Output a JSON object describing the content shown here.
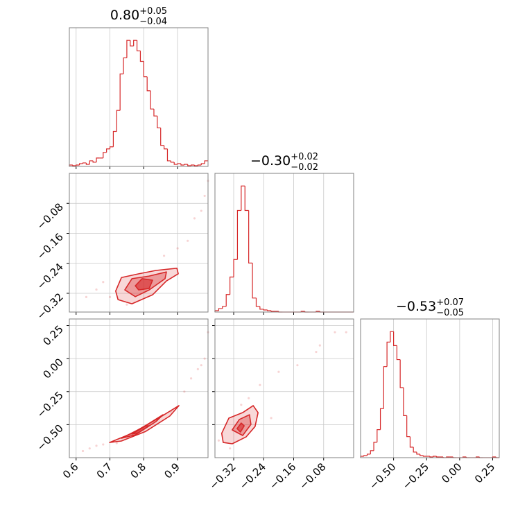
{
  "chart_data": [
    {
      "type": "histogram",
      "title": {
        "value": "0.80",
        "upper": "+0.05",
        "lower": "−0.04"
      },
      "color": "#d62728",
      "xlim": [
        0.58,
        0.99
      ],
      "ylim": [
        0,
        198
      ],
      "xticks": [
        0.6,
        0.7,
        0.8,
        0.9
      ],
      "grid": true,
      "bins": [
        0.58,
        0.59,
        0.6,
        0.61,
        0.62,
        0.63,
        0.64,
        0.65,
        0.66,
        0.67,
        0.68,
        0.69,
        0.7,
        0.71,
        0.72,
        0.73,
        0.74,
        0.75,
        0.76,
        0.77,
        0.78,
        0.79,
        0.8,
        0.81,
        0.82,
        0.83,
        0.84,
        0.85,
        0.86,
        0.87,
        0.88,
        0.89,
        0.9,
        0.91,
        0.92,
        0.93,
        0.94,
        0.95,
        0.96,
        0.97,
        0.98,
        0.99
      ],
      "values": [
        2,
        1,
        2,
        4,
        5,
        3,
        8,
        6,
        12,
        12,
        20,
        25,
        28,
        50,
        80,
        132,
        155,
        180,
        172,
        180,
        165,
        150,
        128,
        108,
        82,
        72,
        55,
        30,
        25,
        8,
        6,
        3,
        4,
        2,
        3,
        1,
        2,
        1,
        2,
        4,
        8
      ]
    },
    {
      "type": "scatter",
      "color": "#d62728",
      "grid": true,
      "xlim": [
        0.58,
        0.99
      ],
      "ylim": [
        -0.37,
        0
      ],
      "xticks": [
        0.6,
        0.7,
        0.8,
        0.9
      ],
      "yticks": [
        {
          "value": -0.08,
          "label": "−0.08"
        },
        {
          "value": -0.16,
          "label": "−0.16"
        },
        {
          "value": -0.24,
          "label": "−0.24"
        },
        {
          "value": -0.32,
          "label": "−0.32"
        }
      ],
      "points": {
        "x": [
          0.95,
          0.97,
          0.98,
          0.93,
          0.9,
          0.66,
          0.63,
          0.7,
          0.86,
          0.99,
          0.75,
          0.68
        ],
        "y": [
          -0.12,
          -0.1,
          -0.06,
          -0.18,
          -0.2,
          -0.31,
          -0.33,
          -0.33,
          -0.22,
          -0.02,
          -0.35,
          -0.29
        ]
      },
      "contours": [
        {
          "x": [
            0.717,
            0.734,
            0.785,
            0.836,
            0.898,
            0.902,
            0.867,
            0.826,
            0.765,
            0.724
          ],
          "y": [
            -0.314,
            -0.278,
            -0.268,
            -0.259,
            -0.253,
            -0.268,
            -0.287,
            -0.324,
            -0.348,
            -0.337
          ]
        },
        {
          "x": [
            0.744,
            0.765,
            0.816,
            0.867,
            0.863,
            0.816,
            0.775
          ],
          "y": [
            -0.311,
            -0.281,
            -0.274,
            -0.263,
            -0.281,
            -0.311,
            -0.329
          ]
        },
        {
          "x": [
            0.775,
            0.795,
            0.826,
            0.816,
            0.785
          ],
          "y": [
            -0.3,
            -0.281,
            -0.285,
            -0.307,
            -0.311
          ]
        }
      ]
    },
    {
      "type": "histogram",
      "title": {
        "value": "−0.30",
        "upper": "+0.02",
        "lower": "−0.02"
      },
      "color": "#d62728",
      "xlim": [
        -0.37,
        0
      ],
      "ylim": [
        0,
        198
      ],
      "grid": true,
      "xticks": [
        {
          "value": -0.32,
          "label": "−0.32"
        },
        {
          "value": -0.24,
          "label": "−0.24"
        },
        {
          "value": -0.16,
          "label": "−0.16"
        },
        {
          "value": -0.08,
          "label": "−0.08"
        }
      ],
      "bins": [
        -0.37,
        -0.36,
        -0.35,
        -0.34,
        -0.33,
        -0.32,
        -0.31,
        -0.3,
        -0.29,
        -0.28,
        -0.27,
        -0.26,
        -0.25,
        -0.24,
        -0.23,
        -0.22,
        -0.21,
        -0.2,
        -0.19,
        -0.18,
        -0.17,
        -0.16,
        -0.15,
        -0.14,
        -0.13,
        -0.12,
        -0.11,
        -0.1,
        -0.09,
        -0.08,
        -0.07,
        -0.06,
        -0.05,
        -0.04,
        -0.03,
        -0.02,
        -0.01,
        0
      ],
      "values": [
        2,
        5,
        8,
        25,
        50,
        75,
        145,
        180,
        145,
        70,
        20,
        8,
        4,
        3,
        2,
        1,
        1,
        0,
        0,
        0,
        0,
        0,
        0,
        1,
        0,
        0,
        0,
        1,
        0,
        0,
        0,
        0,
        0,
        0,
        0,
        0,
        0
      ]
    },
    {
      "type": "scatter",
      "color": "#d62728",
      "grid": true,
      "xlim": [
        0.58,
        0.99
      ],
      "ylim": [
        -0.75,
        0.3
      ],
      "xticks": [
        0.6,
        0.7,
        0.8,
        0.9
      ],
      "yticks": [
        0.25,
        {
          "value": 0,
          "label": "0.00"
        },
        {
          "value": -0.25,
          "label": "−0.25"
        },
        {
          "value": -0.5,
          "label": "−0.50"
        }
      ],
      "points": {
        "x": [
          0.62,
          0.64,
          0.66,
          0.68,
          0.92,
          0.94,
          0.96,
          0.98,
          0.99,
          0.97,
          0.88,
          0.72
        ],
        "y": [
          -0.7,
          -0.68,
          -0.66,
          -0.65,
          -0.25,
          -0.15,
          -0.08,
          0,
          0.2,
          -0.05,
          -0.4,
          -0.64
        ]
      },
      "contours": [
        {
          "x": [
            0.699,
            0.765,
            0.847,
            0.904,
            0.877,
            0.806,
            0.734
          ],
          "y": [
            -0.635,
            -0.566,
            -0.446,
            -0.356,
            -0.435,
            -0.551,
            -0.624
          ]
        },
        {
          "x": [
            0.734,
            0.795,
            0.857,
            0.836,
            0.775
          ],
          "y": [
            -0.603,
            -0.524,
            -0.425,
            -0.477,
            -0.577
          ]
        },
        {
          "x": [
            0.765,
            0.806,
            0.816,
            0.785
          ],
          "y": [
            -0.571,
            -0.509,
            -0.509,
            -0.561
          ]
        }
      ]
    },
    {
      "type": "scatter",
      "color": "#d62728",
      "grid": true,
      "xlim": [
        -0.37,
        0
      ],
      "ylim": [
        -0.75,
        0.3
      ],
      "xticks": [
        {
          "value": -0.32,
          "label": "−0.32"
        },
        {
          "value": -0.24,
          "label": "−0.24"
        },
        {
          "value": -0.16,
          "label": "−0.16"
        },
        {
          "value": -0.08,
          "label": "−0.08"
        }
      ],
      "yticks": [
        0.25,
        {
          "value": 0,
          "label": "0.00"
        },
        {
          "value": -0.25,
          "label": "−0.25"
        },
        {
          "value": -0.5,
          "label": "−0.50"
        }
      ],
      "points": {
        "x": [
          -0.28,
          -0.25,
          -0.2,
          -0.15,
          -0.1,
          -0.05,
          -0.02,
          -0.3,
          -0.33,
          -0.36,
          -0.22,
          -0.09
        ],
        "y": [
          -0.3,
          -0.2,
          -0.1,
          -0.05,
          0.05,
          0.2,
          0.2,
          -0.35,
          -0.68,
          -0.62,
          -0.45,
          0.1
        ]
      },
      "contours": [
        {
          "x": [
            -0.352,
            -0.333,
            -0.296,
            -0.268,
            -0.255,
            -0.263,
            -0.287,
            -0.324,
            -0.348
          ],
          "y": [
            -0.566,
            -0.451,
            -0.409,
            -0.356,
            -0.409,
            -0.514,
            -0.593,
            -0.645,
            -0.635
          ]
        },
        {
          "x": [
            -0.324,
            -0.305,
            -0.278,
            -0.274,
            -0.296
          ],
          "y": [
            -0.54,
            -0.461,
            -0.425,
            -0.498,
            -0.582
          ]
        },
        {
          "x": [
            -0.311,
            -0.3,
            -0.292,
            -0.302
          ],
          "y": [
            -0.53,
            -0.488,
            -0.509,
            -0.556
          ]
        }
      ]
    },
    {
      "type": "histogram",
      "title": {
        "value": "−0.53",
        "upper": "+0.07",
        "lower": "−0.05"
      },
      "color": "#d62728",
      "xlim": [
        -0.75,
        0.3
      ],
      "ylim": [
        0,
        198
      ],
      "grid": true,
      "xticks": [
        {
          "value": -0.5,
          "label": "−0.50"
        },
        {
          "value": -0.25,
          "label": "−0.25"
        },
        {
          "value": 0,
          "label": "0.00"
        },
        0.25
      ],
      "bins": [
        -0.75,
        -0.725,
        -0.7,
        -0.675,
        -0.65,
        -0.625,
        -0.6,
        -0.575,
        -0.55,
        -0.525,
        -0.5,
        -0.475,
        -0.45,
        -0.425,
        -0.4,
        -0.375,
        -0.35,
        -0.325,
        -0.3,
        -0.275,
        -0.25,
        -0.225,
        -0.2,
        -0.175,
        -0.15,
        -0.125,
        -0.1,
        -0.075,
        -0.05,
        -0.025,
        0,
        0.025,
        0.05,
        0.075,
        0.1,
        0.125,
        0.15,
        0.175,
        0.2,
        0.225,
        0.25,
        0.275,
        0.3
      ],
      "values": [
        2,
        3,
        5,
        10,
        22,
        40,
        70,
        130,
        165,
        180,
        160,
        140,
        100,
        60,
        30,
        15,
        8,
        5,
        3,
        2,
        2,
        1,
        2,
        1,
        1,
        0,
        1,
        1,
        0,
        0,
        0,
        1,
        0,
        0,
        0,
        1,
        0,
        0,
        0,
        0,
        1,
        0
      ]
    }
  ]
}
